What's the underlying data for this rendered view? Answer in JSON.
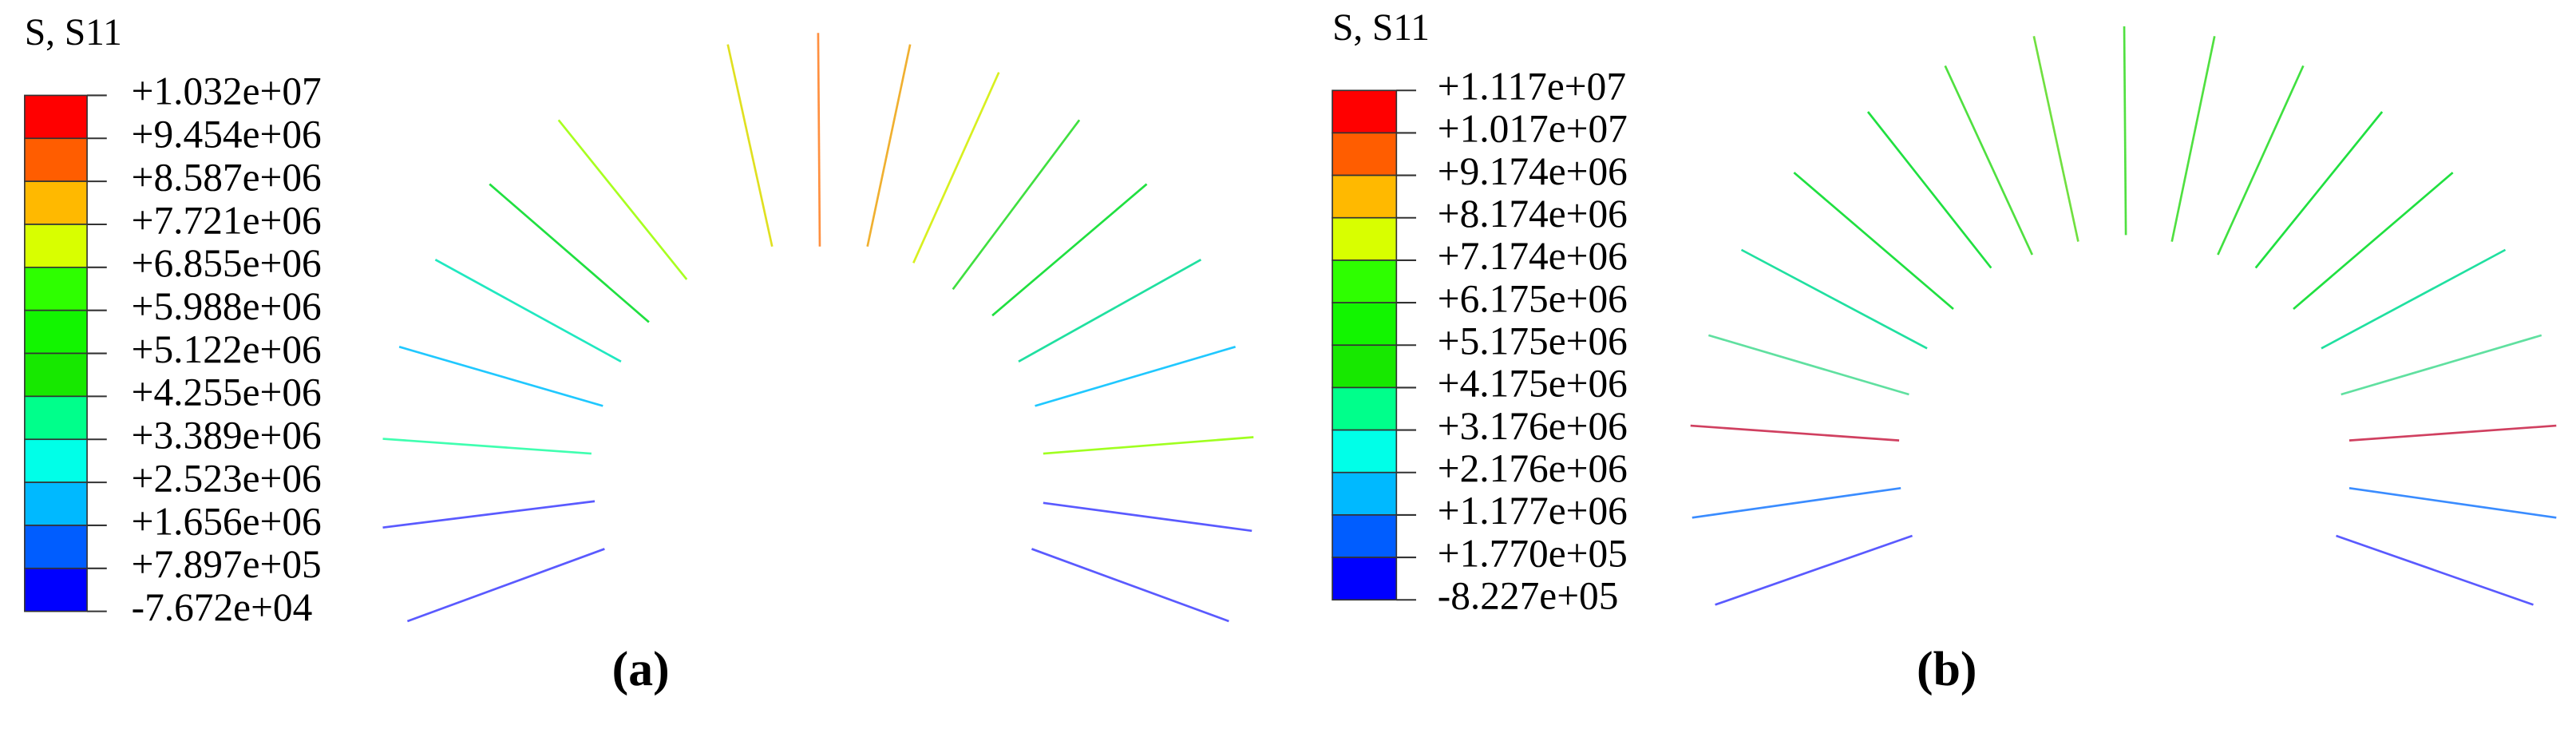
{
  "panels": [
    {
      "title": "S, S11",
      "legend": [
        "+1.032e+07",
        "+9.454e+06",
        "+8.587e+06",
        "+7.721e+06",
        "+6.855e+06",
        "+5.988e+06",
        "+5.122e+06",
        "+4.255e+06",
        "+3.389e+06",
        "+2.523e+06",
        "+1.656e+06",
        "+7.897e+05",
        "-7.672e+04"
      ],
      "caption": "(a)"
    },
    {
      "title": "S, S11",
      "legend": [
        "+1.117e+07",
        "+1.017e+07",
        "+9.174e+06",
        "+8.174e+06",
        "+7.174e+06",
        "+6.175e+06",
        "+5.175e+06",
        "+4.175e+06",
        "+3.176e+06",
        "+2.176e+06",
        "+1.177e+06",
        "+1.770e+05",
        "-8.227e+05"
      ],
      "caption": "(b)"
    }
  ]
}
